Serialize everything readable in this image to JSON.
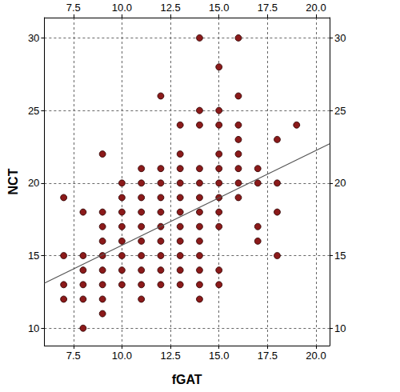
{
  "chart_data": {
    "type": "scatter",
    "x_label": "fGAT",
    "y_label": "NCT",
    "xlim": [
      6.0,
      20.7
    ],
    "ylim": [
      8.8,
      31.4
    ],
    "xticks": [
      7.5,
      {
        "value": 10,
        "label": "10.0"
      },
      12.5,
      {
        "value": 15,
        "label": "15.0"
      },
      17.5,
      {
        "value": 20,
        "label": "20.0"
      }
    ],
    "yticks": [
      10,
      15,
      20,
      25,
      30
    ],
    "grid": true,
    "series": [
      {
        "type": "scatter",
        "color": "#8b1a1a",
        "marker": "circle",
        "x": [
          7,
          7,
          7,
          7,
          8,
          8,
          8,
          8,
          8,
          8,
          9,
          9,
          9,
          9,
          9,
          9,
          9,
          9,
          9,
          10,
          10,
          10,
          10,
          10,
          10,
          10,
          10,
          11,
          11,
          11,
          11,
          11,
          11,
          11,
          11,
          11,
          11,
          12,
          12,
          12,
          12,
          12,
          12,
          12,
          12,
          12,
          12,
          13,
          13,
          13,
          13,
          13,
          13,
          13,
          13,
          13,
          13,
          13,
          14,
          14,
          14,
          14,
          14,
          14,
          14,
          14,
          14,
          14,
          14,
          14,
          14,
          15,
          15,
          15,
          15,
          15,
          15,
          15,
          15,
          15,
          15,
          15,
          16,
          16,
          16,
          16,
          16,
          16,
          16,
          16,
          17,
          17,
          17,
          17,
          18,
          18,
          18,
          18,
          19
        ],
        "values": [
          19,
          15,
          13,
          12,
          18,
          15,
          14,
          13,
          12,
          10,
          22,
          18,
          17,
          16,
          15,
          14,
          13,
          12,
          11,
          20,
          19,
          18,
          17,
          16,
          15,
          14,
          13,
          21,
          20,
          19,
          18,
          17,
          16,
          15,
          14,
          13,
          12,
          26,
          21,
          20,
          19,
          18,
          17,
          16,
          15,
          14,
          13,
          24,
          22,
          21,
          20,
          19,
          18,
          17,
          16,
          15,
          14,
          13,
          30,
          25,
          24,
          21,
          20,
          19,
          18,
          17,
          16,
          15,
          14,
          13,
          12,
          28,
          25,
          24,
          22,
          21,
          20,
          19,
          18,
          17,
          14,
          13,
          30,
          26,
          24,
          23,
          22,
          21,
          20,
          19,
          21,
          20,
          17,
          16,
          23,
          20,
          18,
          15,
          24
        ]
      },
      {
        "type": "line",
        "color": "#555555",
        "line_style": "solid",
        "x": [
          6.0,
          20.7
        ],
        "values": [
          13.1,
          22.7
        ]
      }
    ]
  }
}
